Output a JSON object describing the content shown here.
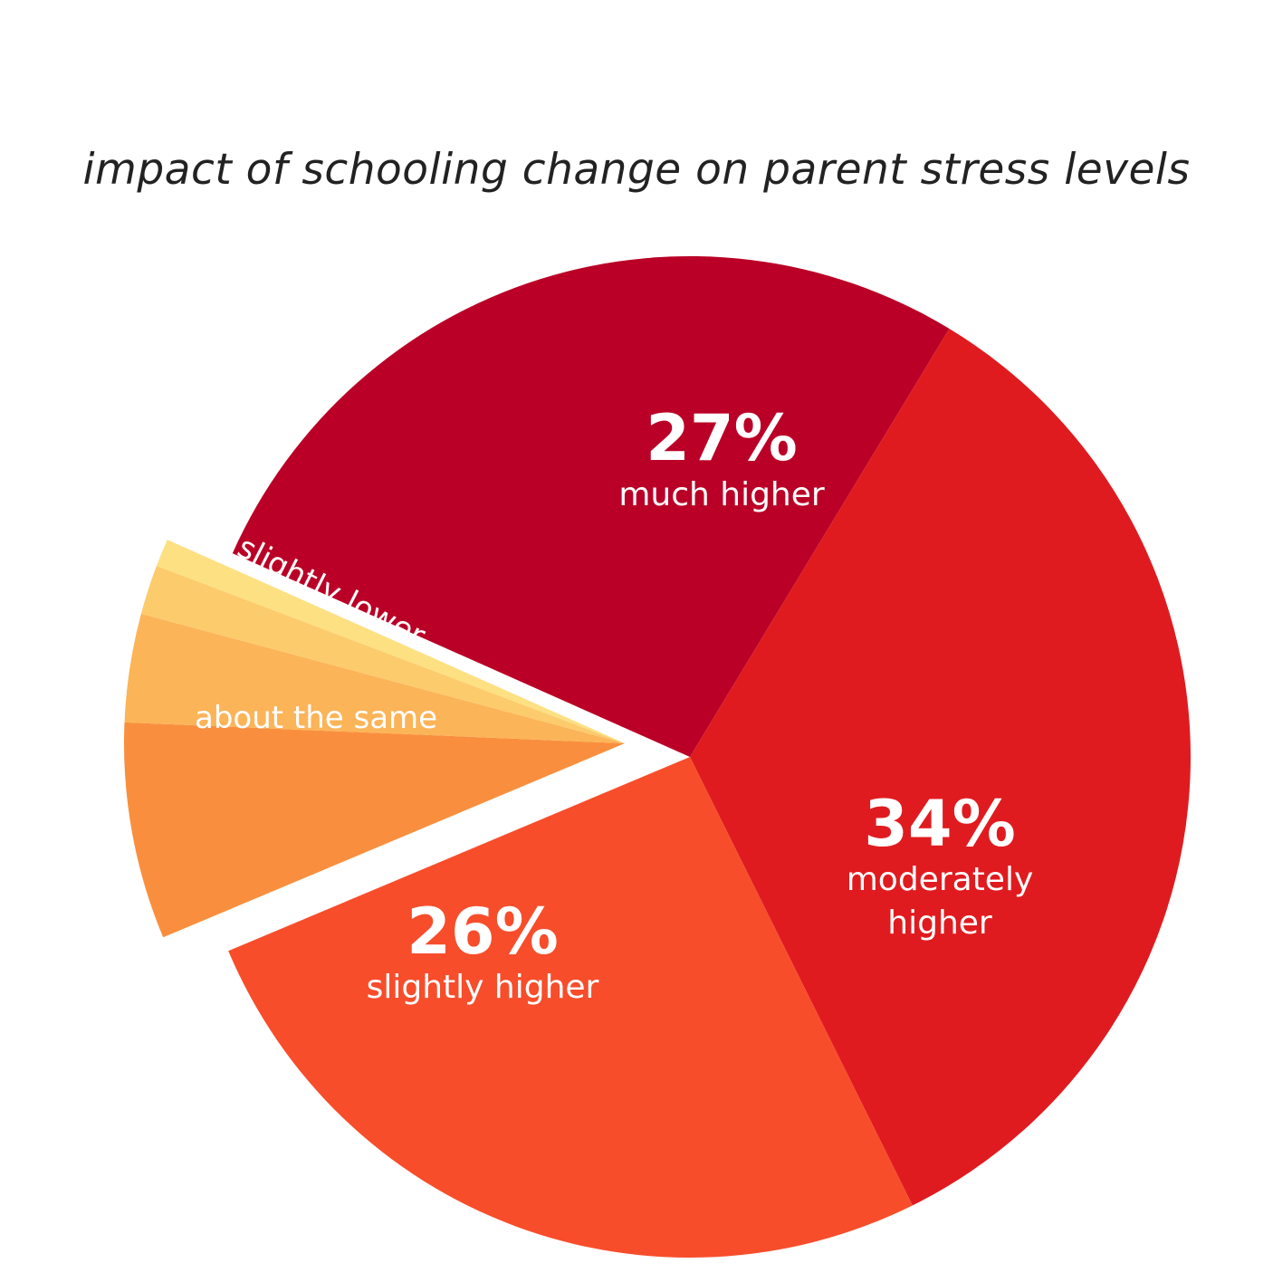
{
  "chart_data": {
    "type": "pie",
    "title": "impact of schooling change on parent stress levels",
    "slices": [
      {
        "category": "much higher",
        "value": 27,
        "value_label": "27%",
        "color": "#BA0026"
      },
      {
        "category": "moderately higher",
        "label_lines": [
          "moderately",
          "higher"
        ],
        "value": 34,
        "value_label": "34%",
        "color": "#E01B1F"
      },
      {
        "category": "slightly higher",
        "value": 26,
        "value_label": "26%",
        "color": "#F74D2B"
      },
      {
        "category": "about the same",
        "value": 7,
        "color": "#F98F3E"
      },
      {
        "category": "slightly lower",
        "value": 3.5,
        "color": "#FCB458"
      },
      {
        "category": "",
        "value": 1.6,
        "color": "#FCCB6C"
      },
      {
        "category": "",
        "value": 0.9,
        "color": "#FDE082"
      }
    ],
    "exploded_group": [
      "about the same",
      "slightly lower"
    ],
    "legend": "none"
  }
}
